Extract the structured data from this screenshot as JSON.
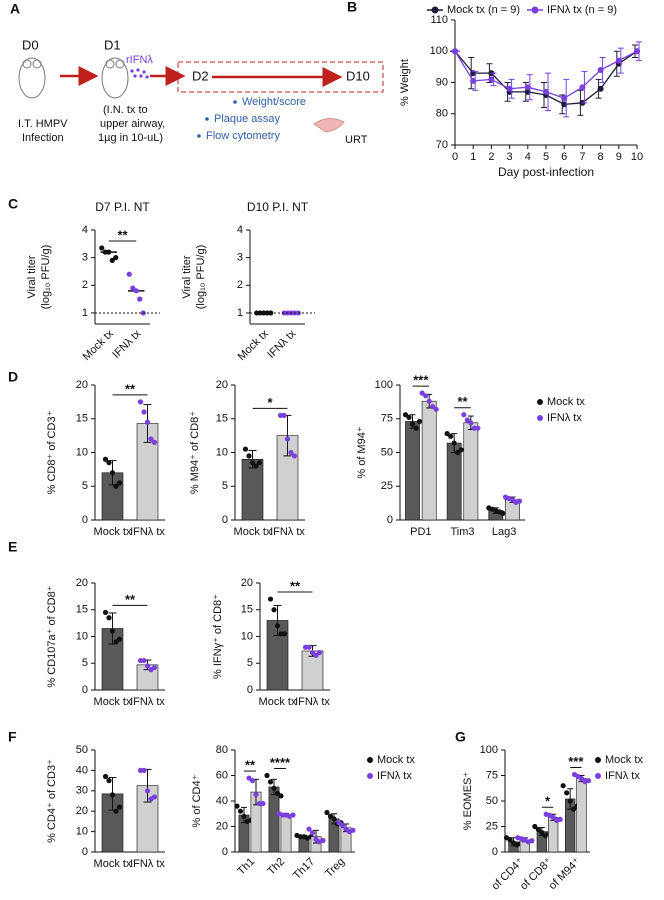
{
  "diagram": {
    "panel": "A",
    "day0": "D0",
    "day1": "D1",
    "drug": "rIFNλ",
    "left_caption": [
      "I.T. HMPV",
      "Infection"
    ],
    "mid_caption": [
      "(I.N. tx to",
      "upper airway,",
      "1µg in 10-uL)"
    ],
    "start": "D2",
    "end": "D10",
    "bullets": [
      "Weight/score",
      "Plaque assay",
      "Flow cytometry"
    ],
    "tissue": "URT"
  },
  "chart_data": [
    {
      "type": "line",
      "panel": "B",
      "xlabel": "Day post-infection",
      "ylabel": "% Weight",
      "x": [
        0,
        1,
        2,
        3,
        4,
        5,
        6,
        7,
        8,
        9,
        10
      ],
      "xlim": [
        0,
        10
      ],
      "xticks": [
        0,
        1,
        2,
        3,
        4,
        5,
        6,
        7,
        8,
        9,
        10
      ],
      "ylim": [
        70,
        110
      ],
      "yticks": [
        70,
        80,
        90,
        100,
        110
      ],
      "legend": "top",
      "series": [
        {
          "name": "Mock tx (n = 9)",
          "color": "#1c1c3a",
          "values": [
            100,
            93,
            93,
            87,
            87,
            86,
            83,
            83.5,
            88,
            96,
            100
          ],
          "errors": [
            0,
            5,
            3,
            3,
            3,
            4,
            3,
            4,
            3,
            4,
            2
          ]
        },
        {
          "name": "IFNλ tx (n = 9)",
          "color": "#7b3fe0",
          "values": [
            100,
            90.5,
            91,
            88,
            88.5,
            87,
            85,
            88.5,
            94,
            97,
            100
          ],
          "errors": [
            0,
            3,
            2,
            3,
            4,
            6,
            6,
            5,
            4,
            4,
            3
          ]
        }
      ]
    },
    {
      "type": "scatter",
      "panel": "C",
      "title": "D7 P.I. NT",
      "ylabel": [
        "Viral titer",
        "(log₁₀ PFU/g)"
      ],
      "categories": [
        "Mock tx",
        "IFNλ tx"
      ],
      "values": [
        3.2,
        1.8
      ],
      "points": [
        [
          3.35,
          3.2,
          3.2,
          2.9,
          3.0
        ],
        [
          2.4,
          1.9,
          1.8,
          1.5,
          1.0
        ]
      ],
      "point_colors": [
        "#111111",
        "#7b3fe0"
      ],
      "reference_line": 1,
      "ylim": [
        0.6,
        4
      ],
      "yticks": [
        1,
        2,
        3,
        4
      ],
      "significance": "**"
    },
    {
      "type": "scatter",
      "title": "D10 P.I. NT",
      "ylabel": [
        "Viral titer",
        "(log₁₀ PFU/g)"
      ],
      "categories": [
        "Mock tx",
        "IFNλ tx"
      ],
      "values": [
        1,
        1
      ],
      "points": [
        [
          1,
          1,
          1,
          1,
          1
        ],
        [
          1,
          1,
          1,
          1,
          1
        ]
      ],
      "point_colors": [
        "#111111",
        "#7b3fe0"
      ],
      "reference_line": 1,
      "ylim": [
        0.6,
        4
      ],
      "yticks": [
        1,
        2,
        3,
        4
      ]
    },
    {
      "type": "bar",
      "panel": "D",
      "ylabel": "% CD8⁺ of CD3⁺",
      "categories": [
        "Mock tx",
        "IFNλ tx"
      ],
      "values": [
        7,
        14.3
      ],
      "errors": [
        1.8,
        2.8
      ],
      "points": [
        [
          9,
          8.5,
          7,
          5,
          5.5
        ],
        [
          17.5,
          16,
          14.5,
          12,
          11.5
        ]
      ],
      "colors": [
        "#595959",
        "#d0d0d0"
      ],
      "point_colors": [
        "#111111",
        "#7b3fe0"
      ],
      "ylim": [
        0,
        20
      ],
      "yticks": [
        0,
        5,
        10,
        15,
        20
      ],
      "significance": "**"
    },
    {
      "type": "bar",
      "ylabel": "% M94⁺ of CD8⁺",
      "categories": [
        "Mock tx",
        "IFNλ tx"
      ],
      "values": [
        9,
        12.5
      ],
      "errors": [
        1.3,
        3
      ],
      "points": [
        [
          10.5,
          9.5,
          8.5,
          8,
          8.5
        ],
        [
          15.5,
          15.5,
          12,
          10,
          9.5
        ]
      ],
      "colors": [
        "#595959",
        "#d0d0d0"
      ],
      "point_colors": [
        "#111111",
        "#7b3fe0"
      ],
      "ylim": [
        0,
        20
      ],
      "yticks": [
        0,
        5,
        10,
        15,
        20
      ],
      "significance": "*"
    },
    {
      "type": "bar",
      "ylabel": "% of M94⁺",
      "categories": [
        "PD1",
        "Tim3",
        "Lag3"
      ],
      "legend": "right",
      "ylim": [
        0,
        100
      ],
      "yticks": [
        0,
        25,
        50,
        75,
        100
      ],
      "significance": [
        "***",
        "**",
        null
      ],
      "series": [
        {
          "name": "Mock tx",
          "color": "#595959",
          "point_color": "#111111",
          "values": [
            73,
            57,
            7
          ],
          "errors": [
            5,
            7,
            2
          ],
          "points": [
            [
              78,
              76,
              71,
              68,
              73
            ],
            [
              64,
              62,
              57,
              50,
              52
            ],
            [
              9,
              8,
              7,
              6,
              5
            ]
          ]
        },
        {
          "name": "IFNλ tx",
          "color": "#d0d0d0",
          "point_color": "#7b3fe0",
          "values": [
            88,
            72,
            15
          ],
          "errors": [
            5,
            5,
            2
          ],
          "points": [
            [
              94,
              92,
              88,
              84,
              82
            ],
            [
              78,
              74,
              72,
              68,
              68
            ],
            [
              17,
              16,
              15,
              13,
              14
            ]
          ]
        }
      ]
    },
    {
      "type": "bar",
      "panel": "E",
      "ylabel": "% CD107a⁺ of CD8⁺",
      "categories": [
        "Mock tx",
        "IFNλ tx"
      ],
      "values": [
        11.5,
        4.7
      ],
      "errors": [
        2.9,
        0.9
      ],
      "points": [
        [
          14.5,
          13.5,
          11,
          9,
          9.5
        ],
        [
          5.5,
          5.5,
          4.5,
          3.8,
          4.2
        ]
      ],
      "colors": [
        "#595959",
        "#d0d0d0"
      ],
      "point_colors": [
        "#111111",
        "#7b3fe0"
      ],
      "ylim": [
        0,
        20
      ],
      "yticks": [
        0,
        5,
        10,
        15,
        20
      ],
      "significance": "**"
    },
    {
      "type": "bar",
      "ylabel": "% IFNγ⁺ of CD8⁺",
      "categories": [
        "Mock tx",
        "IFNλ tx"
      ],
      "values": [
        13,
        7.3
      ],
      "errors": [
        2.8,
        1
      ],
      "points": [
        [
          17,
          15,
          12,
          10.5,
          10.5
        ],
        [
          8,
          8,
          7,
          6.5,
          7
        ]
      ],
      "colors": [
        "#595959",
        "#d0d0d0"
      ],
      "point_colors": [
        "#111111",
        "#7b3fe0"
      ],
      "ylim": [
        0,
        20
      ],
      "yticks": [
        0,
        5,
        10,
        15,
        20
      ],
      "significance": "**"
    },
    {
      "type": "bar",
      "panel": "F",
      "ylabel": "% CD4⁺ of CD3⁺",
      "categories": [
        "Mock tx",
        "IFNλ tx"
      ],
      "values": [
        28.5,
        32.5
      ],
      "errors": [
        8,
        8
      ],
      "points": [
        [
          37,
          35,
          28,
          20,
          22
        ],
        [
          40,
          40,
          30,
          26,
          27
        ]
      ],
      "colors": [
        "#595959",
        "#d0d0d0"
      ],
      "point_colors": [
        "#111111",
        "#7b3fe0"
      ],
      "ylim": [
        0,
        50
      ],
      "yticks": [
        0,
        10,
        20,
        30,
        40,
        50
      ]
    },
    {
      "type": "bar",
      "ylabel": "% of CD4⁺",
      "categories": [
        "Th1",
        "Th2",
        "Th17",
        "Treg"
      ],
      "legend": "right",
      "ylim": [
        0,
        80
      ],
      "yticks": [
        0,
        20,
        40,
        60,
        80
      ],
      "significance": [
        "**",
        "****",
        null,
        null
      ],
      "series": [
        {
          "name": "Mock tx",
          "color": "#595959",
          "point_color": "#111111",
          "values": [
            29,
            51,
            12,
            26
          ],
          "errors": [
            6,
            6,
            1,
            4
          ],
          "points": [
            [
              36,
              32,
              28,
              24,
              25
            ],
            [
              60,
              55,
              50,
              46,
              44
            ],
            [
              13,
              12,
              12,
              11,
              12
            ],
            [
              31,
              28,
              26,
              22,
              23
            ]
          ]
        },
        {
          "name": "IFNλ tx",
          "color": "#d0d0d0",
          "point_color": "#7b3fe0",
          "values": [
            47,
            29,
            12,
            19
          ],
          "errors": [
            10,
            1,
            5,
            3
          ],
          "points": [
            [
              58,
              56,
              45,
              38,
              38
            ],
            [
              30,
              29,
              29,
              28,
              29
            ],
            [
              18,
              15,
              10,
              8,
              9
            ],
            [
              23,
              21,
              18,
              16,
              17
            ]
          ]
        }
      ]
    },
    {
      "type": "bar",
      "panel": "G",
      "ylabel": "% EOMES⁺",
      "categories": [
        "of CD4⁺",
        "of CD8⁺",
        "of M94⁺"
      ],
      "legend": "right",
      "ylim": [
        0,
        100
      ],
      "yticks": [
        0,
        25,
        50,
        75,
        100
      ],
      "significance": [
        null,
        "*",
        "***"
      ],
      "series": [
        {
          "name": "Mock tx",
          "color": "#595959",
          "point_color": "#111111",
          "values": [
            10,
            20,
            52
          ],
          "errors": [
            4,
            4,
            10
          ],
          "points": [
            [
              14,
              12,
              9,
              7,
              8
            ],
            [
              25,
              22,
              19,
              16,
              18
            ],
            [
              65,
              58,
              50,
              42,
              45
            ]
          ]
        },
        {
          "name": "IFNλ tx",
          "color": "#d0d0d0",
          "point_color": "#7b3fe0",
          "values": [
            12,
            34,
            72
          ],
          "errors": [
            2,
            3,
            3
          ],
          "points": [
            [
              14,
              13,
              12,
              10,
              11
            ],
            [
              37,
              36,
              34,
              31,
              32
            ],
            [
              76,
              74,
              72,
              69,
              70
            ]
          ]
        }
      ]
    }
  ]
}
